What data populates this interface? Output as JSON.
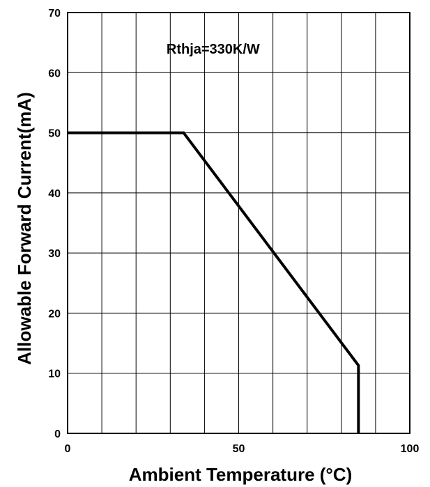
{
  "chart_data": {
    "type": "line",
    "title": "",
    "xlabel": "Ambient Temperature (°C)",
    "ylabel": "Allowable Forward Current(mA)",
    "annotation": "Rthja=330K/W",
    "xlim": [
      0,
      100
    ],
    "ylim": [
      0,
      70
    ],
    "x_major_ticks": [
      0,
      50,
      100
    ],
    "y_major_ticks": [
      0,
      10,
      20,
      30,
      40,
      50,
      60,
      70
    ],
    "x_grid": [
      10,
      20,
      30,
      40,
      50,
      60,
      70,
      80,
      90
    ],
    "y_grid": [
      10,
      20,
      30,
      40,
      50,
      60
    ],
    "grid": true,
    "series": [
      {
        "color": "#000000",
        "points": [
          [
            0,
            50
          ],
          [
            33.9,
            50
          ],
          [
            85,
            11.3
          ],
          [
            85,
            0
          ]
        ]
      }
    ]
  }
}
